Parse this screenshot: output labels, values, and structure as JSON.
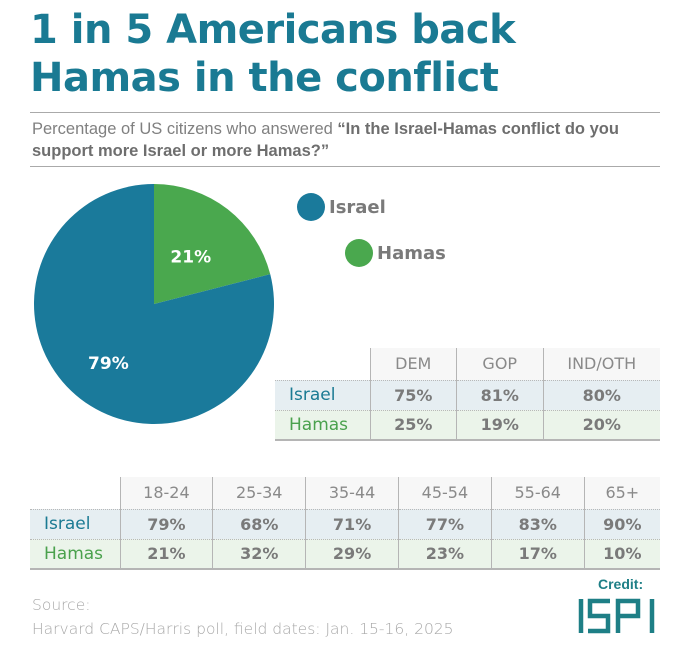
{
  "header": {
    "title_line1": "1 in 5 Americans back",
    "title_line2": "Hamas in the conflict",
    "subtitle_prefix": "Percentage of US citizens who answered ",
    "subtitle_question": "“In the Israel-Hamas conflict do you support more Israel or more Hamas?”"
  },
  "colors": {
    "israel": "#1a7a9b",
    "hamas": "#4aa84e",
    "title": "#1a7a93",
    "logo": "#1e7f86"
  },
  "chart_data": [
    {
      "type": "pie",
      "title": "1 in 5 Americans back Hamas in the conflict",
      "categories": [
        "Israel",
        "Hamas"
      ],
      "values": [
        79,
        21
      ],
      "labels": [
        "79%",
        "21%"
      ],
      "legend": [
        "Israel",
        "Hamas"
      ],
      "legend_position": "right"
    },
    {
      "type": "table",
      "columns": [
        "DEM",
        "GOP",
        "IND/OTH"
      ],
      "rows": [
        {
          "label": "Israel",
          "values": [
            "75%",
            "81%",
            "80%"
          ]
        },
        {
          "label": "Hamas",
          "values": [
            "25%",
            "19%",
            "20%"
          ]
        }
      ]
    },
    {
      "type": "table",
      "columns": [
        "18-24",
        "25-34",
        "35-44",
        "45-54",
        "55-64",
        "65+"
      ],
      "rows": [
        {
          "label": "Israel",
          "values": [
            "79%",
            "68%",
            "71%",
            "77%",
            "83%",
            "90%"
          ]
        },
        {
          "label": "Hamas",
          "values": [
            "21%",
            "32%",
            "29%",
            "23%",
            "17%",
            "10%"
          ]
        }
      ]
    }
  ],
  "footer": {
    "source_label": "Source:",
    "source_text": "Harvard CAPS/Harris poll, field dates: Jan. 15-16, 2025",
    "credit_label": "Credit:",
    "logo_text": "ISPI"
  }
}
